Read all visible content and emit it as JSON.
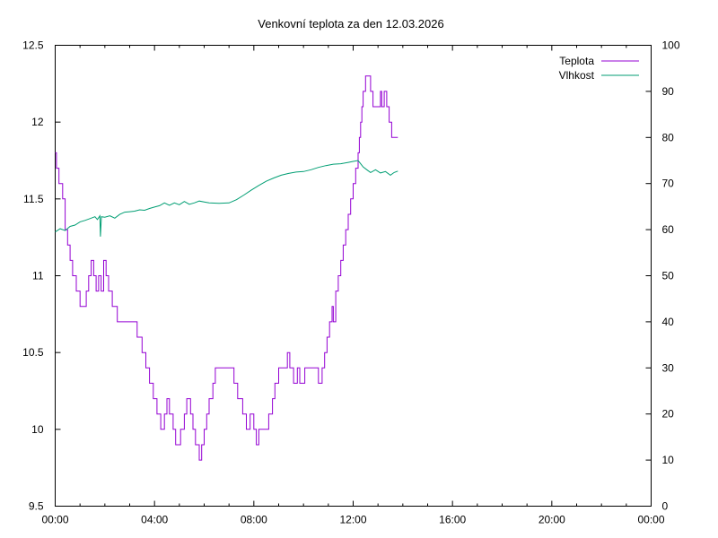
{
  "chart_data": {
    "type": "line",
    "title": "Venkovní teplota za den 12.03.2026",
    "xlabel": "",
    "ylabel": "",
    "y2label": "",
    "x_ticks": [
      "00:00",
      "04:00",
      "08:00",
      "12:00",
      "16:00",
      "20:00",
      "00:00"
    ],
    "xlim_hours": [
      0,
      24
    ],
    "ylim": [
      9.5,
      12.5
    ],
    "y_ticks": [
      "9.5",
      "10",
      "10.5",
      "11",
      "11.5",
      "12",
      "12.5"
    ],
    "y2lim": [
      0,
      100
    ],
    "y2_ticks": [
      "0",
      "10",
      "20",
      "30",
      "40",
      "50",
      "60",
      "70",
      "80",
      "90",
      "100"
    ],
    "grid": false,
    "legend_position": "top-right",
    "series": [
      {
        "name": "Teplota",
        "axis": "left",
        "color": "#9400d3",
        "step": true,
        "points": [
          [
            0.0,
            11.8
          ],
          [
            0.05,
            11.7
          ],
          [
            0.15,
            11.6
          ],
          [
            0.3,
            11.5
          ],
          [
            0.4,
            11.3
          ],
          [
            0.5,
            11.2
          ],
          [
            0.6,
            11.1
          ],
          [
            0.7,
            11.0
          ],
          [
            0.85,
            10.9
          ],
          [
            1.0,
            10.8
          ],
          [
            1.25,
            10.9
          ],
          [
            1.35,
            11.0
          ],
          [
            1.45,
            11.1
          ],
          [
            1.55,
            11.0
          ],
          [
            1.65,
            10.9
          ],
          [
            1.75,
            11.0
          ],
          [
            1.85,
            10.9
          ],
          [
            1.95,
            11.1
          ],
          [
            2.05,
            11.0
          ],
          [
            2.15,
            10.9
          ],
          [
            2.3,
            10.8
          ],
          [
            2.5,
            10.7
          ],
          [
            3.3,
            10.6
          ],
          [
            3.5,
            10.5
          ],
          [
            3.65,
            10.4
          ],
          [
            3.8,
            10.3
          ],
          [
            3.95,
            10.2
          ],
          [
            4.1,
            10.1
          ],
          [
            4.25,
            10.0
          ],
          [
            4.4,
            10.1
          ],
          [
            4.5,
            10.2
          ],
          [
            4.6,
            10.1
          ],
          [
            4.75,
            10.0
          ],
          [
            4.85,
            9.9
          ],
          [
            5.05,
            10.0
          ],
          [
            5.2,
            10.1
          ],
          [
            5.3,
            10.2
          ],
          [
            5.45,
            10.1
          ],
          [
            5.55,
            10.0
          ],
          [
            5.65,
            9.9
          ],
          [
            5.8,
            9.8
          ],
          [
            5.9,
            9.9
          ],
          [
            6.0,
            10.0
          ],
          [
            6.1,
            10.1
          ],
          [
            6.2,
            10.2
          ],
          [
            6.35,
            10.3
          ],
          [
            6.45,
            10.4
          ],
          [
            7.2,
            10.3
          ],
          [
            7.35,
            10.2
          ],
          [
            7.55,
            10.1
          ],
          [
            7.7,
            10.0
          ],
          [
            7.85,
            10.1
          ],
          [
            8.0,
            10.0
          ],
          [
            8.1,
            9.9
          ],
          [
            8.2,
            10.0
          ],
          [
            8.6,
            10.1
          ],
          [
            8.75,
            10.2
          ],
          [
            8.85,
            10.3
          ],
          [
            9.0,
            10.4
          ],
          [
            9.35,
            10.5
          ],
          [
            9.45,
            10.4
          ],
          [
            9.6,
            10.3
          ],
          [
            9.75,
            10.4
          ],
          [
            9.85,
            10.3
          ],
          [
            10.05,
            10.4
          ],
          [
            10.6,
            10.3
          ],
          [
            10.75,
            10.4
          ],
          [
            10.85,
            10.5
          ],
          [
            10.95,
            10.6
          ],
          [
            11.05,
            10.7
          ],
          [
            11.15,
            10.8
          ],
          [
            11.2,
            10.7
          ],
          [
            11.3,
            10.9
          ],
          [
            11.4,
            11.0
          ],
          [
            11.5,
            11.1
          ],
          [
            11.6,
            11.2
          ],
          [
            11.7,
            11.3
          ],
          [
            11.8,
            11.4
          ],
          [
            11.9,
            11.5
          ],
          [
            12.0,
            11.6
          ],
          [
            12.1,
            11.7
          ],
          [
            12.2,
            11.8
          ],
          [
            12.25,
            11.9
          ],
          [
            12.3,
            12.0
          ],
          [
            12.35,
            12.1
          ],
          [
            12.4,
            12.2
          ],
          [
            12.5,
            12.3
          ],
          [
            12.7,
            12.2
          ],
          [
            12.8,
            12.1
          ],
          [
            13.1,
            12.2
          ],
          [
            13.15,
            12.1
          ],
          [
            13.25,
            12.2
          ],
          [
            13.35,
            12.1
          ],
          [
            13.45,
            12.0
          ],
          [
            13.55,
            11.9
          ],
          [
            13.8,
            11.9
          ]
        ]
      },
      {
        "name": "Vlhkost",
        "axis": "right",
        "color": "#009e73",
        "step": false,
        "points": [
          [
            0.0,
            59.5
          ],
          [
            0.2,
            60.2
          ],
          [
            0.4,
            59.8
          ],
          [
            0.6,
            60.7
          ],
          [
            0.8,
            61.0
          ],
          [
            1.0,
            61.7
          ],
          [
            1.2,
            62.0
          ],
          [
            1.4,
            62.4
          ],
          [
            1.6,
            62.8
          ],
          [
            1.7,
            62.2
          ],
          [
            1.8,
            63.0
          ],
          [
            1.82,
            58.5
          ],
          [
            1.86,
            62.8
          ],
          [
            2.0,
            62.7
          ],
          [
            2.2,
            63.0
          ],
          [
            2.4,
            62.5
          ],
          [
            2.6,
            63.3
          ],
          [
            2.8,
            63.8
          ],
          [
            3.0,
            63.9
          ],
          [
            3.2,
            64.0
          ],
          [
            3.4,
            64.3
          ],
          [
            3.6,
            64.2
          ],
          [
            3.8,
            64.6
          ],
          [
            4.0,
            64.9
          ],
          [
            4.2,
            65.2
          ],
          [
            4.4,
            65.8
          ],
          [
            4.6,
            65.3
          ],
          [
            4.8,
            65.8
          ],
          [
            5.0,
            65.4
          ],
          [
            5.2,
            66.1
          ],
          [
            5.4,
            65.5
          ],
          [
            5.6,
            65.8
          ],
          [
            5.8,
            66.2
          ],
          [
            6.0,
            66.0
          ],
          [
            6.2,
            65.8
          ],
          [
            6.6,
            65.7
          ],
          [
            7.0,
            65.8
          ],
          [
            7.3,
            66.5
          ],
          [
            7.6,
            67.5
          ],
          [
            7.9,
            68.6
          ],
          [
            8.2,
            69.6
          ],
          [
            8.5,
            70.5
          ],
          [
            8.8,
            71.2
          ],
          [
            9.1,
            71.8
          ],
          [
            9.4,
            72.2
          ],
          [
            9.7,
            72.5
          ],
          [
            10.0,
            72.6
          ],
          [
            10.3,
            73.0
          ],
          [
            10.6,
            73.5
          ],
          [
            10.9,
            73.9
          ],
          [
            11.2,
            74.2
          ],
          [
            11.5,
            74.3
          ],
          [
            11.8,
            74.6
          ],
          [
            12.0,
            74.8
          ],
          [
            12.2,
            75.0
          ],
          [
            12.3,
            74.3
          ],
          [
            12.4,
            73.6
          ],
          [
            12.55,
            73.0
          ],
          [
            12.7,
            72.4
          ],
          [
            12.9,
            73.0
          ],
          [
            13.1,
            72.3
          ],
          [
            13.3,
            72.6
          ],
          [
            13.5,
            71.8
          ],
          [
            13.65,
            72.4
          ],
          [
            13.8,
            72.7
          ]
        ]
      }
    ]
  }
}
